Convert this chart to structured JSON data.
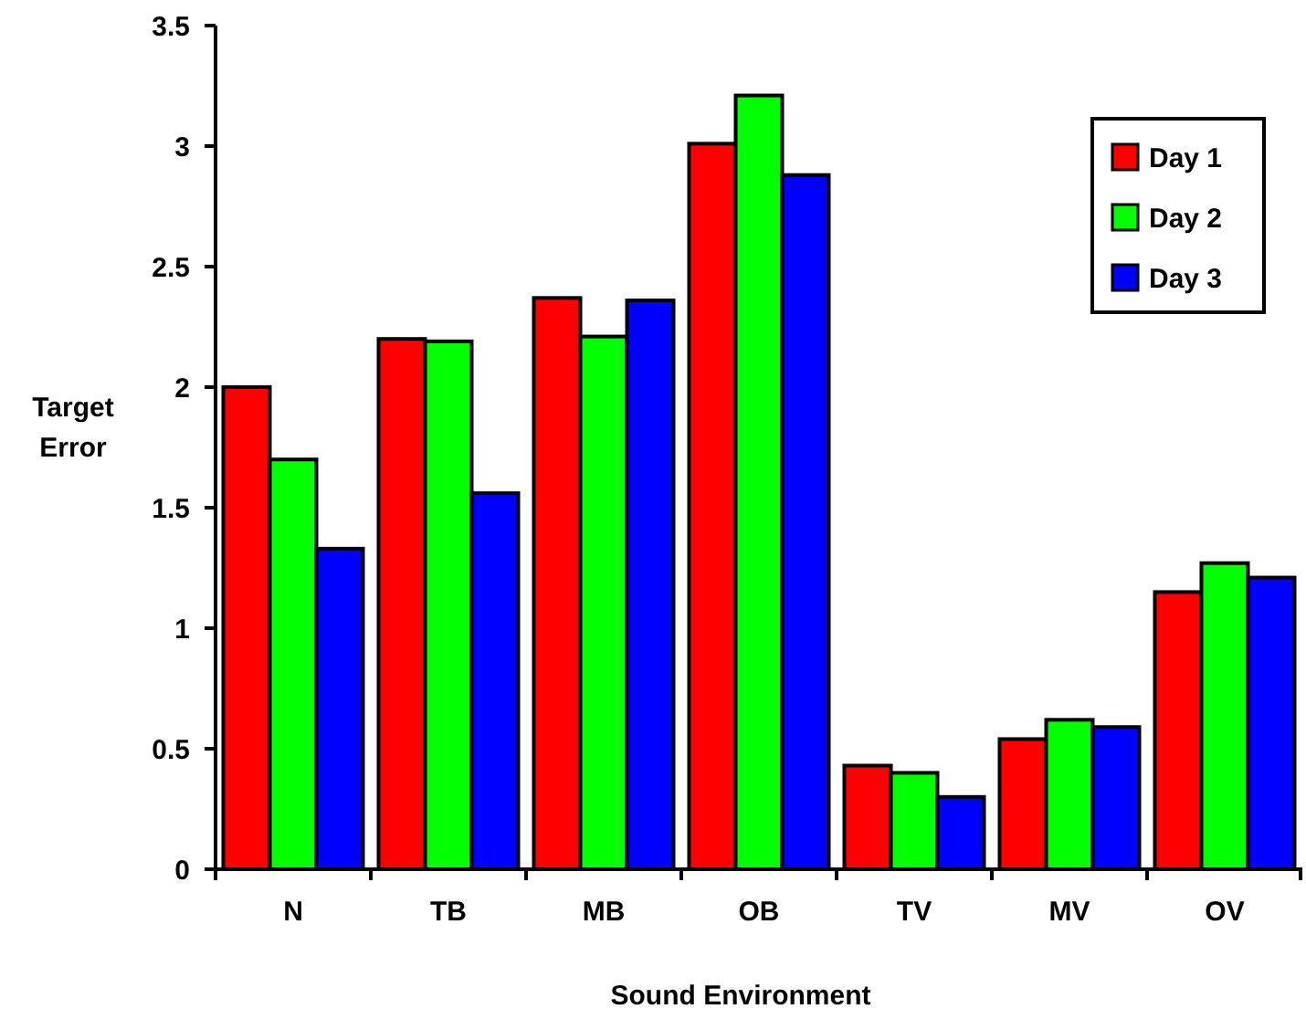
{
  "chart_data": {
    "type": "bar",
    "xlabel": "Sound Environment",
    "ylabel": "Target Error",
    "categories": [
      "N",
      "TB",
      "MB",
      "OB",
      "TV",
      "MV",
      "OV"
    ],
    "series": [
      {
        "name": "Day 1",
        "color": "#ff0000",
        "values": [
          2.0,
          2.2,
          2.37,
          3.01,
          0.43,
          0.54,
          1.15
        ]
      },
      {
        "name": "Day 2",
        "color": "#00ff00",
        "values": [
          1.7,
          2.19,
          2.21,
          3.21,
          0.4,
          0.62,
          1.27
        ]
      },
      {
        "name": "Day 3",
        "color": "#0000ff",
        "values": [
          1.33,
          1.56,
          2.36,
          2.88,
          0.3,
          0.59,
          1.21
        ]
      }
    ],
    "ylim": [
      0,
      3.5
    ],
    "yticks": [
      0,
      0.5,
      1,
      1.5,
      2,
      2.5,
      3,
      3.5
    ],
    "grid": false,
    "legend": "top right"
  }
}
